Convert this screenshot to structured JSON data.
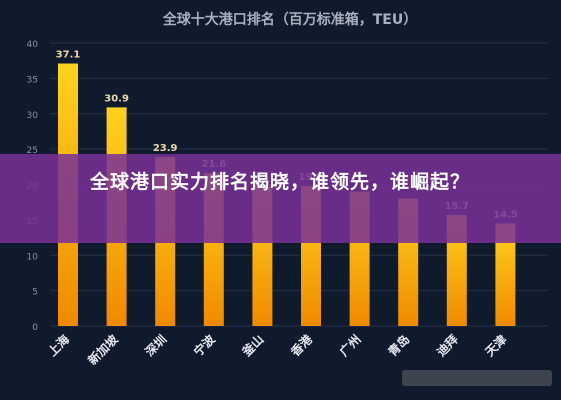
{
  "chart_data": {
    "type": "bar",
    "title": "全球十大港口排名（百万标准箱，TEU）",
    "categories": [
      "上海",
      "新加坡",
      "深圳",
      "宁波",
      "釜山",
      "香港",
      "广州",
      "青岛",
      "迪拜",
      "天津"
    ],
    "values": [
      37.1,
      30.9,
      23.9,
      21.6,
      19.9,
      19.8,
      19.0,
      18.0,
      15.7,
      14.5
    ],
    "value_labels": [
      "37.1",
      "30.9",
      "23.9",
      "21.6",
      "",
      "19.8",
      "",
      "",
      "15.7",
      "14.5"
    ],
    "yticks": [
      "0",
      "5",
      "10",
      "15",
      "20",
      "25",
      "30",
      "35",
      "40"
    ],
    "ylim": [
      0,
      40
    ],
    "grid": true,
    "colors": {
      "bar_top": "#ffd21f",
      "bar_bottom": "#f08a00",
      "label": "#e9d9a7"
    }
  },
  "overlay": {
    "headline": "全球港口实力排名揭晓，谁领先，谁崛起？"
  }
}
